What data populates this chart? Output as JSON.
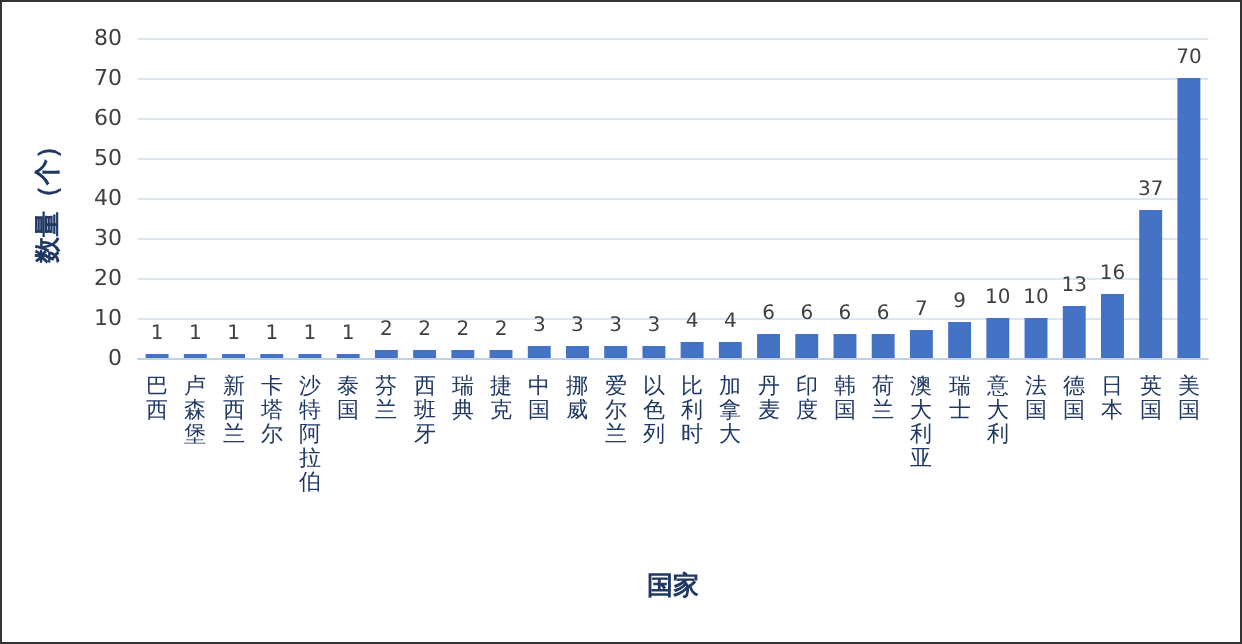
{
  "chart_data": {
    "type": "bar",
    "xlabel": "国家",
    "ylabel": "数量（个）",
    "categories": [
      "巴西",
      "卢森堡",
      "新西兰",
      "卡塔尔",
      "沙特阿拉伯",
      "泰国",
      "芬兰",
      "西班牙",
      "瑞典",
      "捷克",
      "中国",
      "挪威",
      "爱尔兰",
      "以色列",
      "比利时",
      "加拿大",
      "丹麦",
      "印度",
      "韩国",
      "荷兰",
      "澳大利亚",
      "瑞士",
      "意大利",
      "法国",
      "德国",
      "日本",
      "英国",
      "美国"
    ],
    "values": [
      1,
      1,
      1,
      1,
      1,
      1,
      2,
      2,
      2,
      2,
      3,
      3,
      3,
      3,
      4,
      4,
      6,
      6,
      6,
      6,
      7,
      9,
      10,
      10,
      13,
      16,
      37,
      70
    ],
    "color": "#4472c4",
    "ylim": [
      0,
      80
    ],
    "yticks": [
      0,
      10,
      20,
      30,
      40,
      50,
      60,
      70,
      80
    ],
    "grid": "y",
    "data_labels": true
  }
}
